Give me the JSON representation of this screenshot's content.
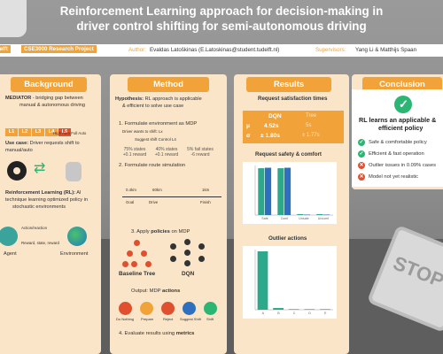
{
  "header": {
    "title_line1": "Reinforcement Learning approach for decision-making in",
    "title_line2": "driver control shifting for semi-autonomous driving"
  },
  "infobar": {
    "delft": "Delft",
    "course": "CSE3000 Research Project",
    "author_label": "Author:",
    "author": "Evaldas Latoškinas (E.Latoskinas@student.tudelft.nl)",
    "supervisors_label": "Supervisors:",
    "supervisors": "Yang Li & Matthijs Spaan"
  },
  "background": {
    "heading": "Background",
    "meili_prefix": "MEDIATOR",
    "meili_text": " - bridging gap between",
    "meili_line2": "manual & autonomous driving",
    "levels": [
      "L1",
      "L2",
      "L3",
      "L4",
      "L5"
    ],
    "levels_hint_left": "",
    "levels_hint_right": "High Auto  Full Auto",
    "use_case_bold": "Use case:",
    "use_case_text": " Driver requests shift to",
    "use_case_line2": "manual/auto",
    "rl_bold": "Reinforcement Learning (RL):",
    "rl_text": " AI",
    "rl_line2": "technique learning optimized policy in",
    "rl_line3": "stochastic environments",
    "action_label": "Action/reaction",
    "reward_label": "Reward, state, reward",
    "agent_label": "Agent",
    "env_label": "Environment"
  },
  "method": {
    "heading": "Method",
    "hyp_bold": "Hypothesis:",
    "hyp_text": " RL approach is applicable",
    "hyp_line2": "& efficient to solve use case",
    "step1": "1. Formulate environment as MDP",
    "step1_sub1": "Driver wants to shift: Lx",
    "step1_sub2": "Suggest shift  Control L4",
    "step1_chips": [
      "75% states",
      "40% states",
      "5% fail states"
    ],
    "step1_chip_sub": [
      "+0.1 reward",
      "+0.1 reward",
      "-6 reward"
    ],
    "step2": "2. Formulate route simulation",
    "step2_ticks": [
      "0.4km",
      "60km",
      "1km"
    ],
    "step2_marks": [
      "Goal",
      "Drive",
      "Finish"
    ],
    "step3_prefix": "3. Apply ",
    "step3_bold": "policies",
    "step3_suffix": " on MDP",
    "tree_label": "Baseline Tree",
    "dqn_label": "DQN",
    "step_out_prefix": "Output: MDP ",
    "step_out_bold": "actions",
    "actions": [
      "Do Nothing",
      "Prepare",
      "Reject",
      "Suggest Shift",
      "Shift"
    ],
    "step4_prefix": "4. Evaluate results using ",
    "step4_bold": "metrics",
    "action_colors": [
      "#e0502f",
      "#f1a33a",
      "#e0502f",
      "#2f6fc0",
      "#2bb673"
    ]
  },
  "results": {
    "heading": "Results",
    "sat_title": "Request satisfaction times",
    "col_dqn": "DQN",
    "col_tree": "Tree",
    "row1_sym": "μ",
    "row1_dqn": "4.52s",
    "row1_tree": "5s",
    "row2_sym": "σ",
    "row2_dqn": "± 1.80s",
    "row2_tree": "± 1.77s",
    "safety_title": "Request safety & comfort",
    "outlier_title": "Outlier actions"
  },
  "chart_data": [
    {
      "type": "bar",
      "title": "Request safety & comfort",
      "categories": [
        "Safe",
        "Comf",
        "Unsafe",
        "Uncomf"
      ],
      "series": [
        {
          "name": "",
          "values": [
            98,
            98,
            2,
            2
          ]
        },
        {
          "name": "",
          "values": [
            99,
            99,
            1,
            1
          ]
        }
      ],
      "ylim": [
        0,
        100
      ]
    },
    {
      "type": "bar",
      "title": "Outlier actions",
      "categories": [
        "A",
        "B",
        "C",
        "D",
        "E"
      ],
      "series": [
        {
          "name": "",
          "values": [
            100,
            3,
            1,
            1,
            1
          ]
        }
      ],
      "ylim": [
        0,
        100
      ]
    }
  ],
  "conclusion": {
    "heading": "Conclusion",
    "main_line1": "RL learns an applicable &",
    "main_line2": "efficient policy",
    "bullets": [
      {
        "kind": "good",
        "text": "Safe & comfortable policy"
      },
      {
        "kind": "good",
        "text": "Efficient & fast operation"
      },
      {
        "kind": "bad",
        "text": "Outlier issues in 0.09% cases"
      },
      {
        "kind": "bad",
        "text": "Model not yet realistic"
      }
    ]
  },
  "colors": {
    "accent": "#f1a33a",
    "panel": "#fbe5c8",
    "good": "#2bb673",
    "bad": "#e0502f"
  }
}
